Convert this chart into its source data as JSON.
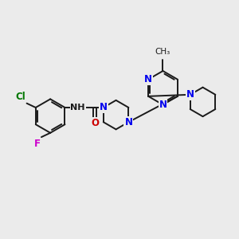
{
  "background_color": "#ebebeb",
  "bond_color": "#1a1a1a",
  "nitrogen_color": "#0000ee",
  "oxygen_color": "#cc0000",
  "chlorine_color": "#007700",
  "fluorine_color": "#cc00cc",
  "figsize": [
    3.0,
    3.0
  ],
  "dpi": 100,
  "xlim": [
    0,
    10
  ],
  "ylim": [
    0,
    10
  ]
}
